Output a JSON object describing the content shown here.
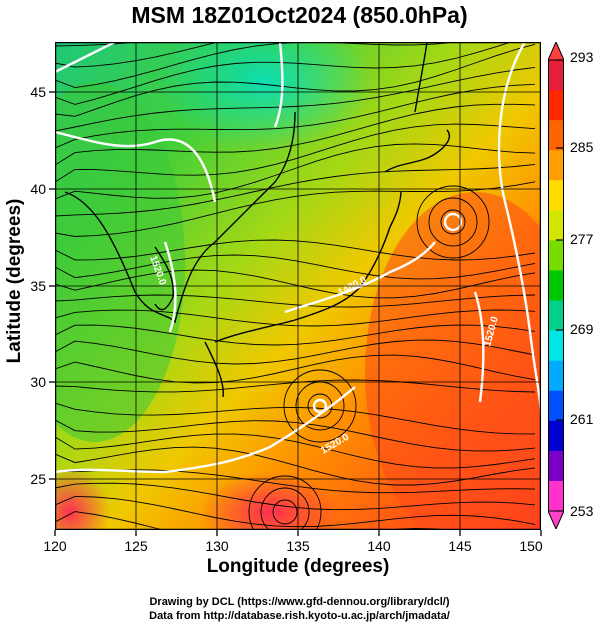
{
  "title": "MSM 18Z01Oct2024 (850.0hPa)",
  "x_axis": {
    "label": "Longitude (degrees)",
    "range": [
      120,
      150
    ],
    "ticks": [
      "120",
      "125",
      "130",
      "135",
      "140",
      "145",
      "150"
    ]
  },
  "y_axis": {
    "label": "Latitude  (degrees)",
    "range": [
      22.4,
      47.6
    ],
    "ticks": [
      "25",
      "30",
      "35",
      "40",
      "45"
    ]
  },
  "colorbar": {
    "range": [
      253,
      293
    ],
    "ticks": [
      "293",
      "285",
      "277",
      "269",
      "261",
      "253"
    ],
    "colors": [
      "#ff33cc",
      "#7a00c8",
      "#0000d2",
      "#0050ff",
      "#00aaff",
      "#00e6e6",
      "#00d28c",
      "#00c800",
      "#78dc00",
      "#d2e600",
      "#ffdc00",
      "#ffa000",
      "#ff6400",
      "#ff2800",
      "#e61e3c"
    ]
  },
  "contour_labels": [
    "1520.0",
    "1480.0",
    "1520.0",
    "1520.0"
  ],
  "map_features": {
    "cyclone_center_northeast": "38.9N 145.1E",
    "cyclone_center_south": "29.5N 137.0E"
  },
  "credits": {
    "line1": "Drawing by DCL (https://www.gfd-dennou.org/library/dcl/)",
    "line2": "Data from http://database.rish.kyoto-u.ac.jp/arch/jmadata/"
  }
}
